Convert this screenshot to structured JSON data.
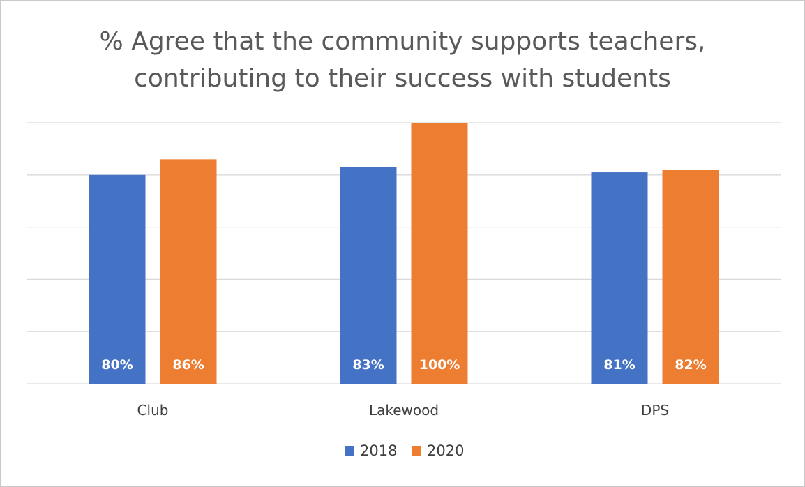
{
  "chart_data": {
    "type": "bar",
    "title": "% Agree that the community supports teachers, contributing to their success with students",
    "title_lines": [
      "% Agree that the community supports teachers,",
      "contributing to their success with students"
    ],
    "categories": [
      "Club",
      "Lakewood",
      "DPS"
    ],
    "series": [
      {
        "name": "2018",
        "color": "#4472C4",
        "values": [
          80,
          83,
          81
        ],
        "labels": [
          "80%",
          "83%",
          "81%"
        ]
      },
      {
        "name": "2020",
        "color": "#ED7D31",
        "values": [
          86,
          100,
          82
        ],
        "labels": [
          "86%",
          "100%",
          "82%"
        ]
      }
    ],
    "ylim": [
      0,
      100
    ],
    "grid": true,
    "y_tick_labels_visible": false,
    "legend_position": "bottom",
    "data_label_position": "inside-base",
    "data_label_color": "#FFFFFF"
  }
}
